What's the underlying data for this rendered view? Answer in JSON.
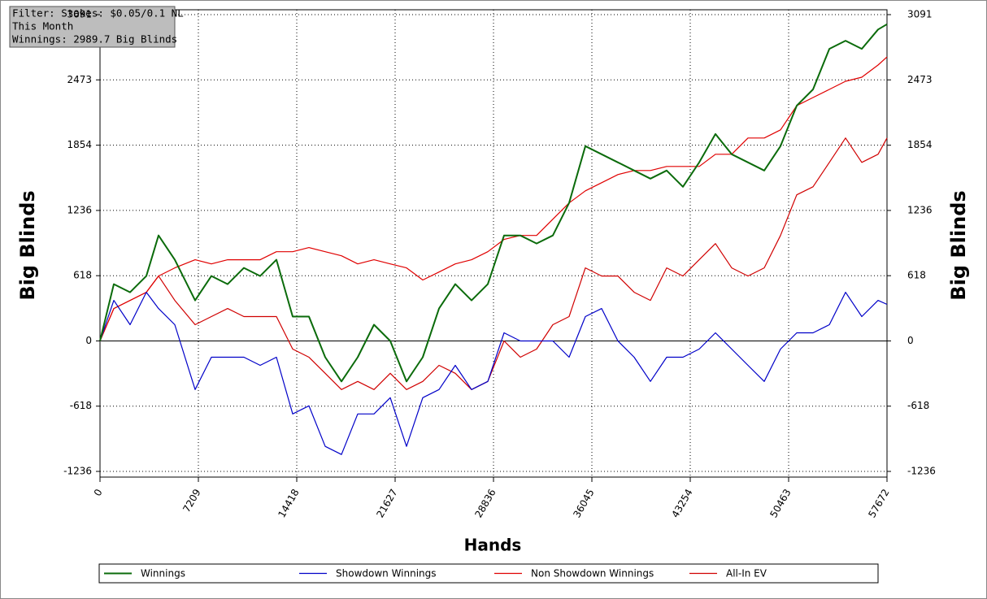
{
  "chart_data": {
    "type": "line",
    "annotations": [
      "Filter: Stakes: $0.05/0.1 NL",
      "This Month",
      "Winnings: 2989.7 Big Blinds"
    ],
    "x_label": "Hands",
    "y_label": "Big Blinds",
    "y2_label": "Big Blinds",
    "x": [
      0,
      1013,
      2205,
      3396,
      4290,
      5482,
      6971,
      8163,
      9354,
      10546,
      11738,
      12929,
      14121,
      15312,
      16504,
      17696,
      18887,
      20079,
      21271,
      22462,
      23654,
      24845,
      26037,
      27229,
      28420,
      29612,
      30804,
      31995,
      33187,
      34379,
      35570,
      36762,
      37954,
      39145,
      40337,
      41528,
      42720,
      43912,
      45103,
      46295,
      47486,
      48678,
      49870,
      51061,
      52253,
      53445,
      54636,
      55828,
      57019,
      57672
    ],
    "xlim": [
      0,
      57672
    ],
    "xticks": [
      0,
      7209,
      14418,
      21627,
      28836,
      36045,
      43254,
      50463,
      57672
    ],
    "ylim": [
      -1236,
      3091
    ],
    "yticks": [
      -1236,
      -618,
      0,
      618,
      1236,
      1854,
      2473,
      3091
    ],
    "y2lim": [
      -1236,
      3091
    ],
    "y2ticks": [
      -1236,
      -618,
      0,
      618,
      1236,
      1854,
      2473,
      3091
    ],
    "grid": true,
    "series": [
      {
        "name": "Winnings",
        "color": "#0b6b0b",
        "values": [
          0,
          538,
          461,
          615,
          999,
          769,
          384,
          615,
          538,
          692,
          615,
          769,
          231,
          231,
          -154,
          -384,
          -154,
          154,
          0,
          -384,
          -154,
          307,
          538,
          384,
          538,
          999,
          999,
          923,
          999,
          1307,
          1845,
          1768,
          1691,
          1614,
          1537,
          1614,
          1460,
          1691,
          1960,
          1768,
          1691,
          1614,
          1845,
          2229,
          2383,
          2767,
          2844,
          2767,
          2950,
          3000
        ]
      },
      {
        "name": "Showdown Winnings",
        "color": "#0000c8",
        "values": [
          0,
          384,
          154,
          461,
          307,
          154,
          -461,
          -154,
          -154,
          -154,
          -231,
          -154,
          -692,
          -615,
          -999,
          -1076,
          -692,
          -692,
          -538,
          -999,
          -538,
          -461,
          -231,
          -461,
          -384,
          77,
          0,
          0,
          0,
          -154,
          231,
          307,
          0,
          -154,
          -384,
          -154,
          -154,
          -77,
          77,
          -77,
          -231,
          -384,
          -77,
          77,
          77,
          154,
          461,
          231,
          384,
          346
        ]
      },
      {
        "name": "Non Showdown Winnings",
        "color": "#e00000",
        "values": [
          0,
          307,
          384,
          461,
          615,
          692,
          769,
          730,
          769,
          769,
          769,
          845,
          845,
          884,
          845,
          807,
          730,
          769,
          730,
          692,
          577,
          653,
          730,
          769,
          845,
          961,
          999,
          999,
          1153,
          1307,
          1422,
          1499,
          1576,
          1614,
          1614,
          1653,
          1653,
          1653,
          1768,
          1768,
          1922,
          1922,
          1999,
          2229,
          2306,
          2383,
          2460,
          2498,
          2614,
          2690
        ]
      },
      {
        "name": "All-In EV",
        "color": "#d00000",
        "values": [
          0,
          307,
          384,
          461,
          615,
          384,
          154,
          231,
          307,
          231,
          231,
          231,
          -77,
          -154,
          -307,
          -461,
          -384,
          -461,
          -307,
          -461,
          -384,
          -231,
          -307,
          -461,
          -384,
          0,
          -154,
          -77,
          154,
          231,
          692,
          615,
          615,
          461,
          384,
          692,
          615,
          769,
          922,
          692,
          615,
          692,
          999,
          1384,
          1460,
          1691,
          1922,
          1691,
          1768,
          1922
        ]
      }
    ]
  }
}
